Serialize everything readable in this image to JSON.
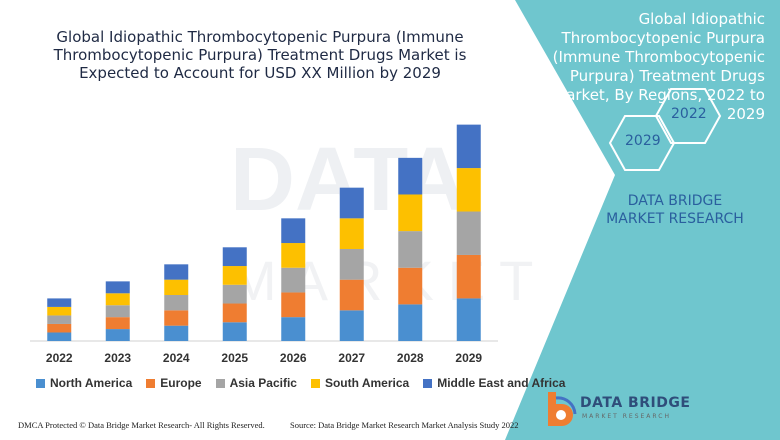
{
  "title": "Global Idiopathic Thrombocytopenic Purpura (Immune Thrombocytopenic Purpura) Treatment Drugs Market is Expected to Account for USD XX Million by 2029",
  "side_panel": {
    "title": "Global Idiopathic Thrombocytopenic Purpura (Immune Thrombocytopenic Purpura) Treatment Drugs Market, By Regions, 2022 to 2029",
    "hex_year_a": "2022",
    "hex_year_b": "2029",
    "brand": "DATA BRIDGE MARKET RESEARCH",
    "logo_name": "DATA BRIDGE",
    "logo_sub": "MARKET RESEARCH",
    "panel_color": "#6fc6ce",
    "logo_icon": "data-bridge-logo-icon"
  },
  "footer": {
    "left": "DMCA Protected © Data Bridge Market Research- All Rights Reserved.",
    "right": "Source: Data Bridge Market Research Market Analysis Study 2022"
  },
  "chart_data": {
    "type": "bar",
    "stacked": true,
    "title": "Global Idiopathic Thrombocytopenic Purpura (Immune Thrombocytopenic Purpura) Treatment Drugs Market is Expected to Account for USD XX Million by 2029",
    "xlabel": "",
    "ylabel": "",
    "y_axis_shown": false,
    "categories": [
      "2022",
      "2023",
      "2024",
      "2025",
      "2026",
      "2027",
      "2028",
      "2029"
    ],
    "series": [
      {
        "name": "North America",
        "color": "#4a8fd0",
        "values": [
          10,
          14,
          18,
          22,
          28,
          36,
          43,
          50
        ]
      },
      {
        "name": "Europe",
        "color": "#ef7d31",
        "values": [
          10,
          14,
          18,
          22,
          29,
          36,
          43,
          51
        ]
      },
      {
        "name": "Asia Pacific",
        "color": "#a5a5a5",
        "values": [
          10,
          14,
          18,
          22,
          29,
          36,
          43,
          51
        ]
      },
      {
        "name": "South America",
        "color": "#fdc000",
        "values": [
          10,
          14,
          18,
          22,
          29,
          36,
          43,
          51
        ]
      },
      {
        "name": "Middle East and Africa",
        "color": "#4472c4",
        "values": [
          10,
          14,
          18,
          22,
          29,
          36,
          43,
          51
        ]
      }
    ],
    "ylim": [
      0,
      270
    ],
    "grid": false,
    "legend_position": "bottom"
  }
}
